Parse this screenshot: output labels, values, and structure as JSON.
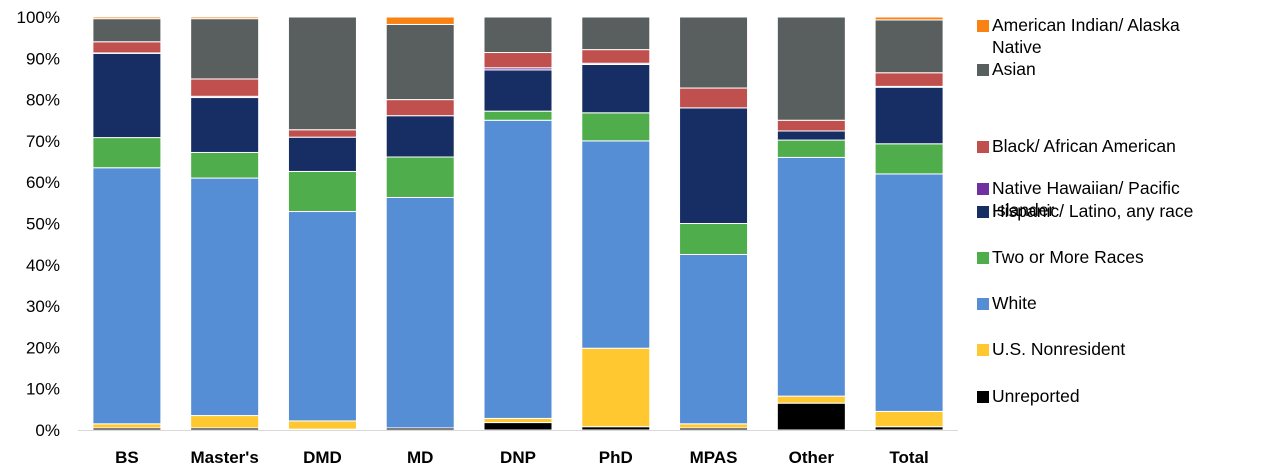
{
  "chart_data": {
    "type": "bar",
    "stacked": true,
    "percent": true,
    "title": "",
    "xlabel": "",
    "ylabel": "",
    "ylim": [
      0,
      100
    ],
    "y_ticks": [
      "0%",
      "10%",
      "20%",
      "30%",
      "40%",
      "50%",
      "60%",
      "70%",
      "80%",
      "90%",
      "100%"
    ],
    "grid": false,
    "legend_position": "right",
    "categories": [
      "BS",
      "Master's",
      "DMD",
      "MD",
      "DNP",
      "PhD",
      "MPAS",
      "Other",
      "Total"
    ],
    "series": [
      {
        "name": "Unreported",
        "color": "#000000",
        "values": [
          0.5,
          0.5,
          0.2,
          0.5,
          1.8,
          0.8,
          0.5,
          6.5,
          0.8
        ]
      },
      {
        "name": "U.S. Nonresident",
        "color": "#FFC831",
        "values": [
          1.0,
          3.0,
          2.0,
          0.0,
          1.0,
          19.0,
          1.0,
          1.7,
          3.7
        ]
      },
      {
        "name": "White",
        "color": "#558ED5",
        "values": [
          62.0,
          57.5,
          50.7,
          55.8,
          72.2,
          50.2,
          41.0,
          57.8,
          57.5
        ]
      },
      {
        "name": "Two or More Races",
        "color": "#4FAD4B",
        "values": [
          7.3,
          6.2,
          9.7,
          9.8,
          2.2,
          6.8,
          7.5,
          4.2,
          7.3
        ]
      },
      {
        "name": "Hispanic/ Latino, any race",
        "color": "#162E63",
        "values": [
          20.4,
          13.3,
          8.3,
          10.0,
          10.0,
          11.7,
          28.0,
          2.2,
          13.7
        ]
      },
      {
        "name": "Native Hawaiian/ Pacific Islander",
        "color": "#7030A0",
        "values": [
          0.1,
          0.3,
          0.0,
          0.0,
          0.5,
          0.3,
          0.0,
          0.0,
          0.2
        ]
      },
      {
        "name": "Black/ African American",
        "color": "#C0504D",
        "values": [
          2.7,
          4.2,
          1.8,
          3.9,
          3.7,
          3.3,
          4.8,
          2.6,
          3.3
        ]
      },
      {
        "name": "Asian",
        "color": "#595F5F",
        "values": [
          5.6,
          14.6,
          27.3,
          18.2,
          8.6,
          7.9,
          17.2,
          25.0,
          12.8
        ]
      },
      {
        "name": "American Indian/ Alaska Native",
        "color": "#F98212",
        "values": [
          0.4,
          0.4,
          0.0,
          1.8,
          0.0,
          0.0,
          0.0,
          0.0,
          0.7
        ]
      }
    ],
    "legend": [
      {
        "lines": [
          "American Indian/ Alaska",
          "Native"
        ],
        "color": "#F98212",
        "icon": "legend-swatch-american-indian"
      },
      {
        "lines": [
          "Asian"
        ],
        "color": "#595F5F",
        "icon": "legend-swatch-asian"
      },
      {
        "lines": [
          "Black/ African American"
        ],
        "color": "#C0504D",
        "icon": "legend-swatch-black"
      },
      {
        "lines": [
          "Native Hawaiian/ Pacific",
          "Islander"
        ],
        "color": "#7030A0",
        "icon": "legend-swatch-native-hawaiian"
      },
      {
        "lines": [
          "Hispanic/ Latino, any race"
        ],
        "color": "#162E63",
        "icon": "legend-swatch-hispanic"
      },
      {
        "lines": [
          "Two or More Races"
        ],
        "color": "#4FAD4B",
        "icon": "legend-swatch-two-or-more"
      },
      {
        "lines": [
          "White"
        ],
        "color": "#558ED5",
        "icon": "legend-swatch-white"
      },
      {
        "lines": [
          "U.S. Nonresident"
        ],
        "color": "#FFC831",
        "icon": "legend-swatch-nonresident"
      },
      {
        "lines": [
          "Unreported"
        ],
        "color": "#000000",
        "icon": "legend-swatch-unreported"
      }
    ]
  }
}
